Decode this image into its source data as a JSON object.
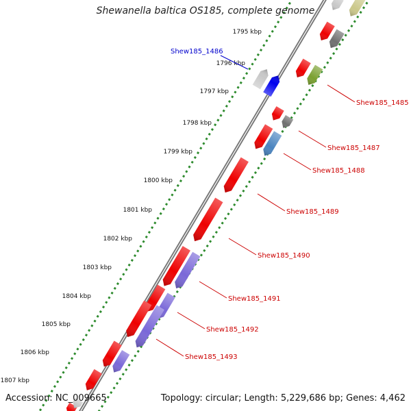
{
  "title": "Shewanella baltica OS185, complete genome",
  "footer": {
    "accession": "Accession: NC_009665",
    "summary": "Topology: circular; Length: 5,229,686 bp; Genes: 4,462"
  },
  "scale_ticks": [
    "1795 kbp",
    "1796 kbp",
    "1797 kbp",
    "1798 kbp",
    "1799 kbp",
    "1800 kbp",
    "1801 kbp",
    "1802 kbp",
    "1803 kbp",
    "1804 kbp",
    "1805 kbp",
    "1806 kbp",
    "1807 kbp"
  ],
  "gene_labels": [
    {
      "text": "Shew185_1486",
      "side": "left",
      "color": "#0000cc"
    },
    {
      "text": "Shew185_1485",
      "side": "right",
      "color": "#cc0000"
    },
    {
      "text": "Shew185_1487",
      "side": "right",
      "color": "#cc0000"
    },
    {
      "text": "Shew185_1488",
      "side": "right",
      "color": "#cc0000"
    },
    {
      "text": "Shew185_1489",
      "side": "right",
      "color": "#cc0000"
    },
    {
      "text": "Shew185_1490",
      "side": "right",
      "color": "#cc0000"
    },
    {
      "text": "Shew185_1491",
      "side": "right",
      "color": "#cc0000"
    },
    {
      "text": "Shew185_1492",
      "side": "right",
      "color": "#cc0000"
    },
    {
      "text": "Shew185_1493",
      "side": "right",
      "color": "#cc0000"
    }
  ],
  "colors": {
    "red": "#ee0000",
    "blue": "#0000ee",
    "grey_light": "#c8c8c8",
    "grey_dark": "#707070",
    "steel_blue": "#4a84c0",
    "purple": "#7a68d8",
    "olive": "#7aa030",
    "khaki": "#cbc88a",
    "dots": "#2e8b2e",
    "backbone": "#777777"
  }
}
